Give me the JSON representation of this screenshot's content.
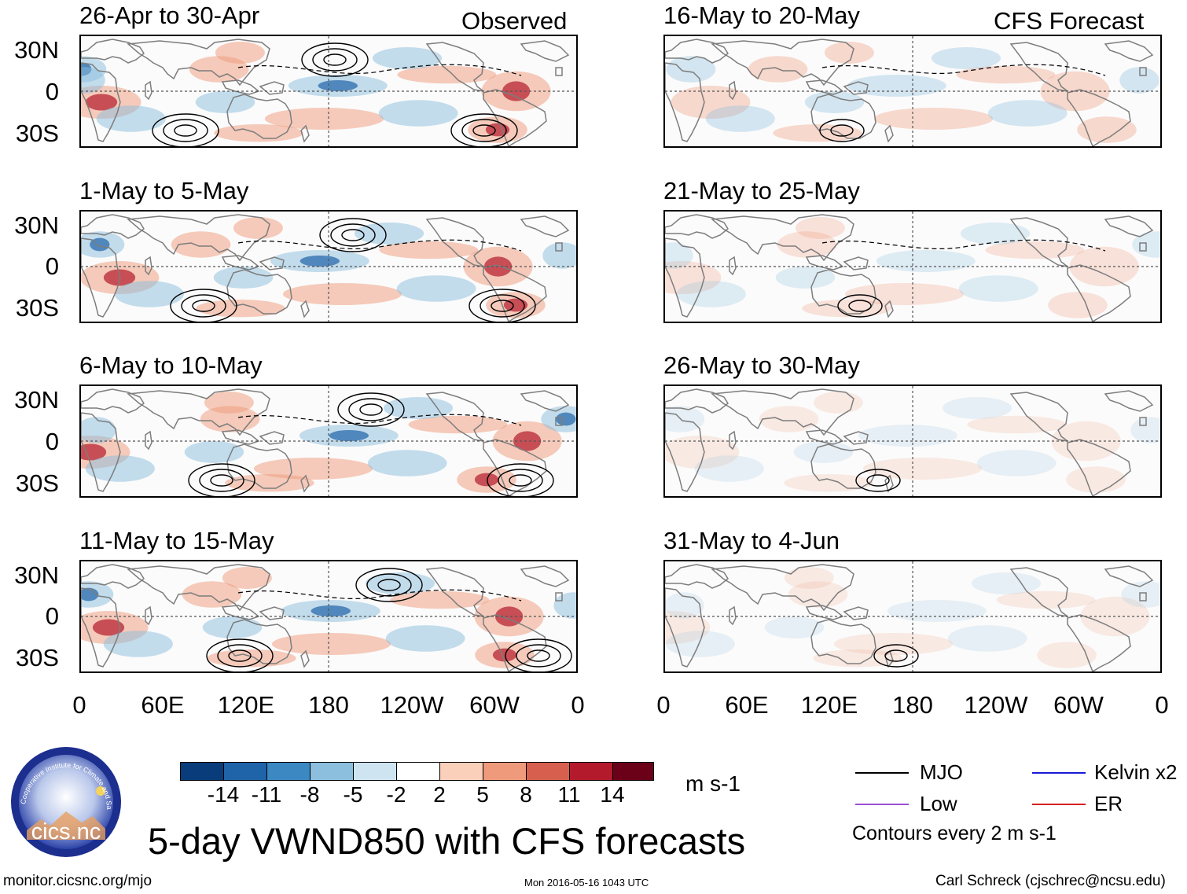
{
  "figure": {
    "title": "5-day VWND850 with CFS forecasts",
    "observed_label": "Observed",
    "forecast_label": "CFS Forecast",
    "units": "m s-1",
    "contour_note": "Contours every 2 m s-1",
    "site": "monitor.cicsnc.org/mjo",
    "timestamp": "Mon 2016-05-16 1043 UTC",
    "author": "Carl Schreck (cjschrec@ncsu.edu)",
    "logo_text": "cics.nc",
    "logo_arc_text": "Cooperative Institute for Climate and Satellites"
  },
  "panels": {
    "observed": [
      {
        "title": "26-Apr to 30-Apr"
      },
      {
        "title": "1-May to 5-May"
      },
      {
        "title": "6-May to 10-May"
      },
      {
        "title": "11-May to 15-May"
      }
    ],
    "forecast": [
      {
        "title": "16-May to 20-May"
      },
      {
        "title": "21-May to 25-May"
      },
      {
        "title": "26-May to 30-May"
      },
      {
        "title": "31-May to 4-Jun"
      }
    ]
  },
  "axes": {
    "lat_labels": [
      "30N",
      "0",
      "30S"
    ],
    "lon_labels": [
      "0",
      "60E",
      "120E",
      "180",
      "120W",
      "60W",
      "0"
    ]
  },
  "colorbar": {
    "ticks": [
      "-14",
      "-11",
      "-8",
      "-5",
      "-2",
      "2",
      "5",
      "8",
      "11",
      "14"
    ],
    "colors": [
      "#083c7a",
      "#1f63a8",
      "#3b88c2",
      "#8cbfde",
      "#cfe4f1",
      "#ffffff",
      "#fbd0bb",
      "#f09a7c",
      "#d6604d",
      "#b31a2b",
      "#6b0019"
    ]
  },
  "legend": {
    "items": [
      {
        "label": "MJO",
        "color": "#000000"
      },
      {
        "label": "Kelvin x2",
        "color": "#1a1ad6"
      },
      {
        "label": "Low",
        "color": "#9b4fd6"
      },
      {
        "label": "ER",
        "color": "#d62020"
      }
    ]
  }
}
